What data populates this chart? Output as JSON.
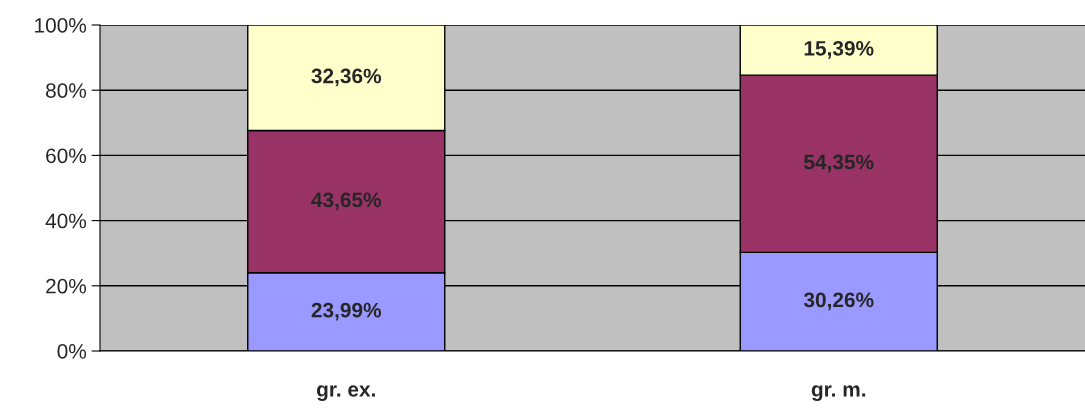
{
  "chart_data": {
    "type": "bar",
    "stacked": true,
    "categories": [
      "gr. ex.",
      "gr. m."
    ],
    "series": [
      {
        "color": "#9999ff",
        "values": [
          23.99,
          30.26
        ],
        "value_labels": [
          "23,99%",
          "30,26%"
        ]
      },
      {
        "color": "#993366",
        "values": [
          43.65,
          54.35
        ],
        "value_labels": [
          "43,65%",
          "54,35%"
        ]
      },
      {
        "color": "#ffffcc",
        "values": [
          32.36,
          15.39
        ],
        "value_labels": [
          "32,36%",
          "15,39%"
        ]
      }
    ],
    "ylim": [
      0,
      100
    ],
    "yticks": [
      {
        "value": 0,
        "label": "0%"
      },
      {
        "value": 20,
        "label": "20%"
      },
      {
        "value": 40,
        "label": "40%"
      },
      {
        "value": 60,
        "label": "60%"
      },
      {
        "value": 80,
        "label": "80%"
      },
      {
        "value": 100,
        "label": "100%"
      }
    ],
    "grid": "y",
    "legend": false
  }
}
